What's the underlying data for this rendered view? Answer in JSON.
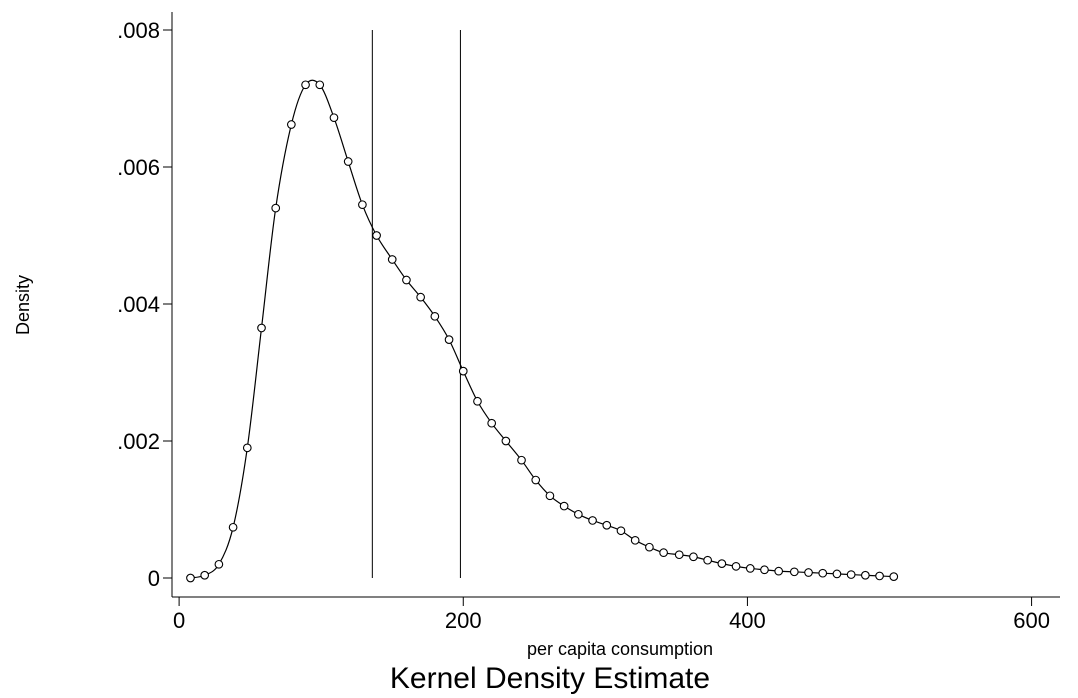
{
  "chart_data": {
    "type": "line",
    "title": "Kernel Density Estimate",
    "xlabel": "per capita consumption",
    "ylabel": "Density",
    "xlim": [
      -5,
      620
    ],
    "ylim": [
      0,
      0.008
    ],
    "xticks": [
      0,
      200,
      400,
      600
    ],
    "xtick_labels": [
      "0",
      "200",
      "400",
      "600"
    ],
    "yticks": [
      0,
      0.002,
      0.004,
      0.006,
      0.008
    ],
    "ytick_labels": [
      "0",
      ".002",
      ".004",
      ".006",
      ".008"
    ],
    "grid": false,
    "legend": "none",
    "reference_lines_x": [
      136,
      198
    ],
    "series": [
      {
        "marker": "hollow-circle",
        "color": "#000000",
        "x": [
          8,
          18,
          28,
          38,
          48,
          58,
          68,
          79,
          89,
          99,
          109,
          119,
          129,
          139,
          150,
          160,
          170,
          180,
          190,
          200,
          210,
          220,
          230,
          241,
          251,
          261,
          271,
          281,
          291,
          301,
          311,
          321,
          331,
          341,
          352,
          362,
          372,
          382,
          392,
          402,
          412,
          422,
          433,
          443,
          453,
          463,
          473,
          483,
          493,
          503
        ],
        "y": [
          0.0,
          4e-05,
          0.0002,
          0.00074,
          0.0019,
          0.00365,
          0.0054,
          0.00662,
          0.0072,
          0.0072,
          0.00672,
          0.00608,
          0.00545,
          0.005,
          0.00465,
          0.00435,
          0.0041,
          0.00382,
          0.00348,
          0.00302,
          0.00258,
          0.00226,
          0.002,
          0.00172,
          0.00143,
          0.0012,
          0.00105,
          0.00093,
          0.00084,
          0.00077,
          0.00069,
          0.00055,
          0.00045,
          0.00037,
          0.00034,
          0.00031,
          0.00026,
          0.00021,
          0.00017,
          0.00014,
          0.00012,
          0.0001,
          9e-05,
          8e-05,
          7e-05,
          6e-05,
          5e-05,
          4e-05,
          3e-05,
          2e-05
        ]
      }
    ]
  }
}
